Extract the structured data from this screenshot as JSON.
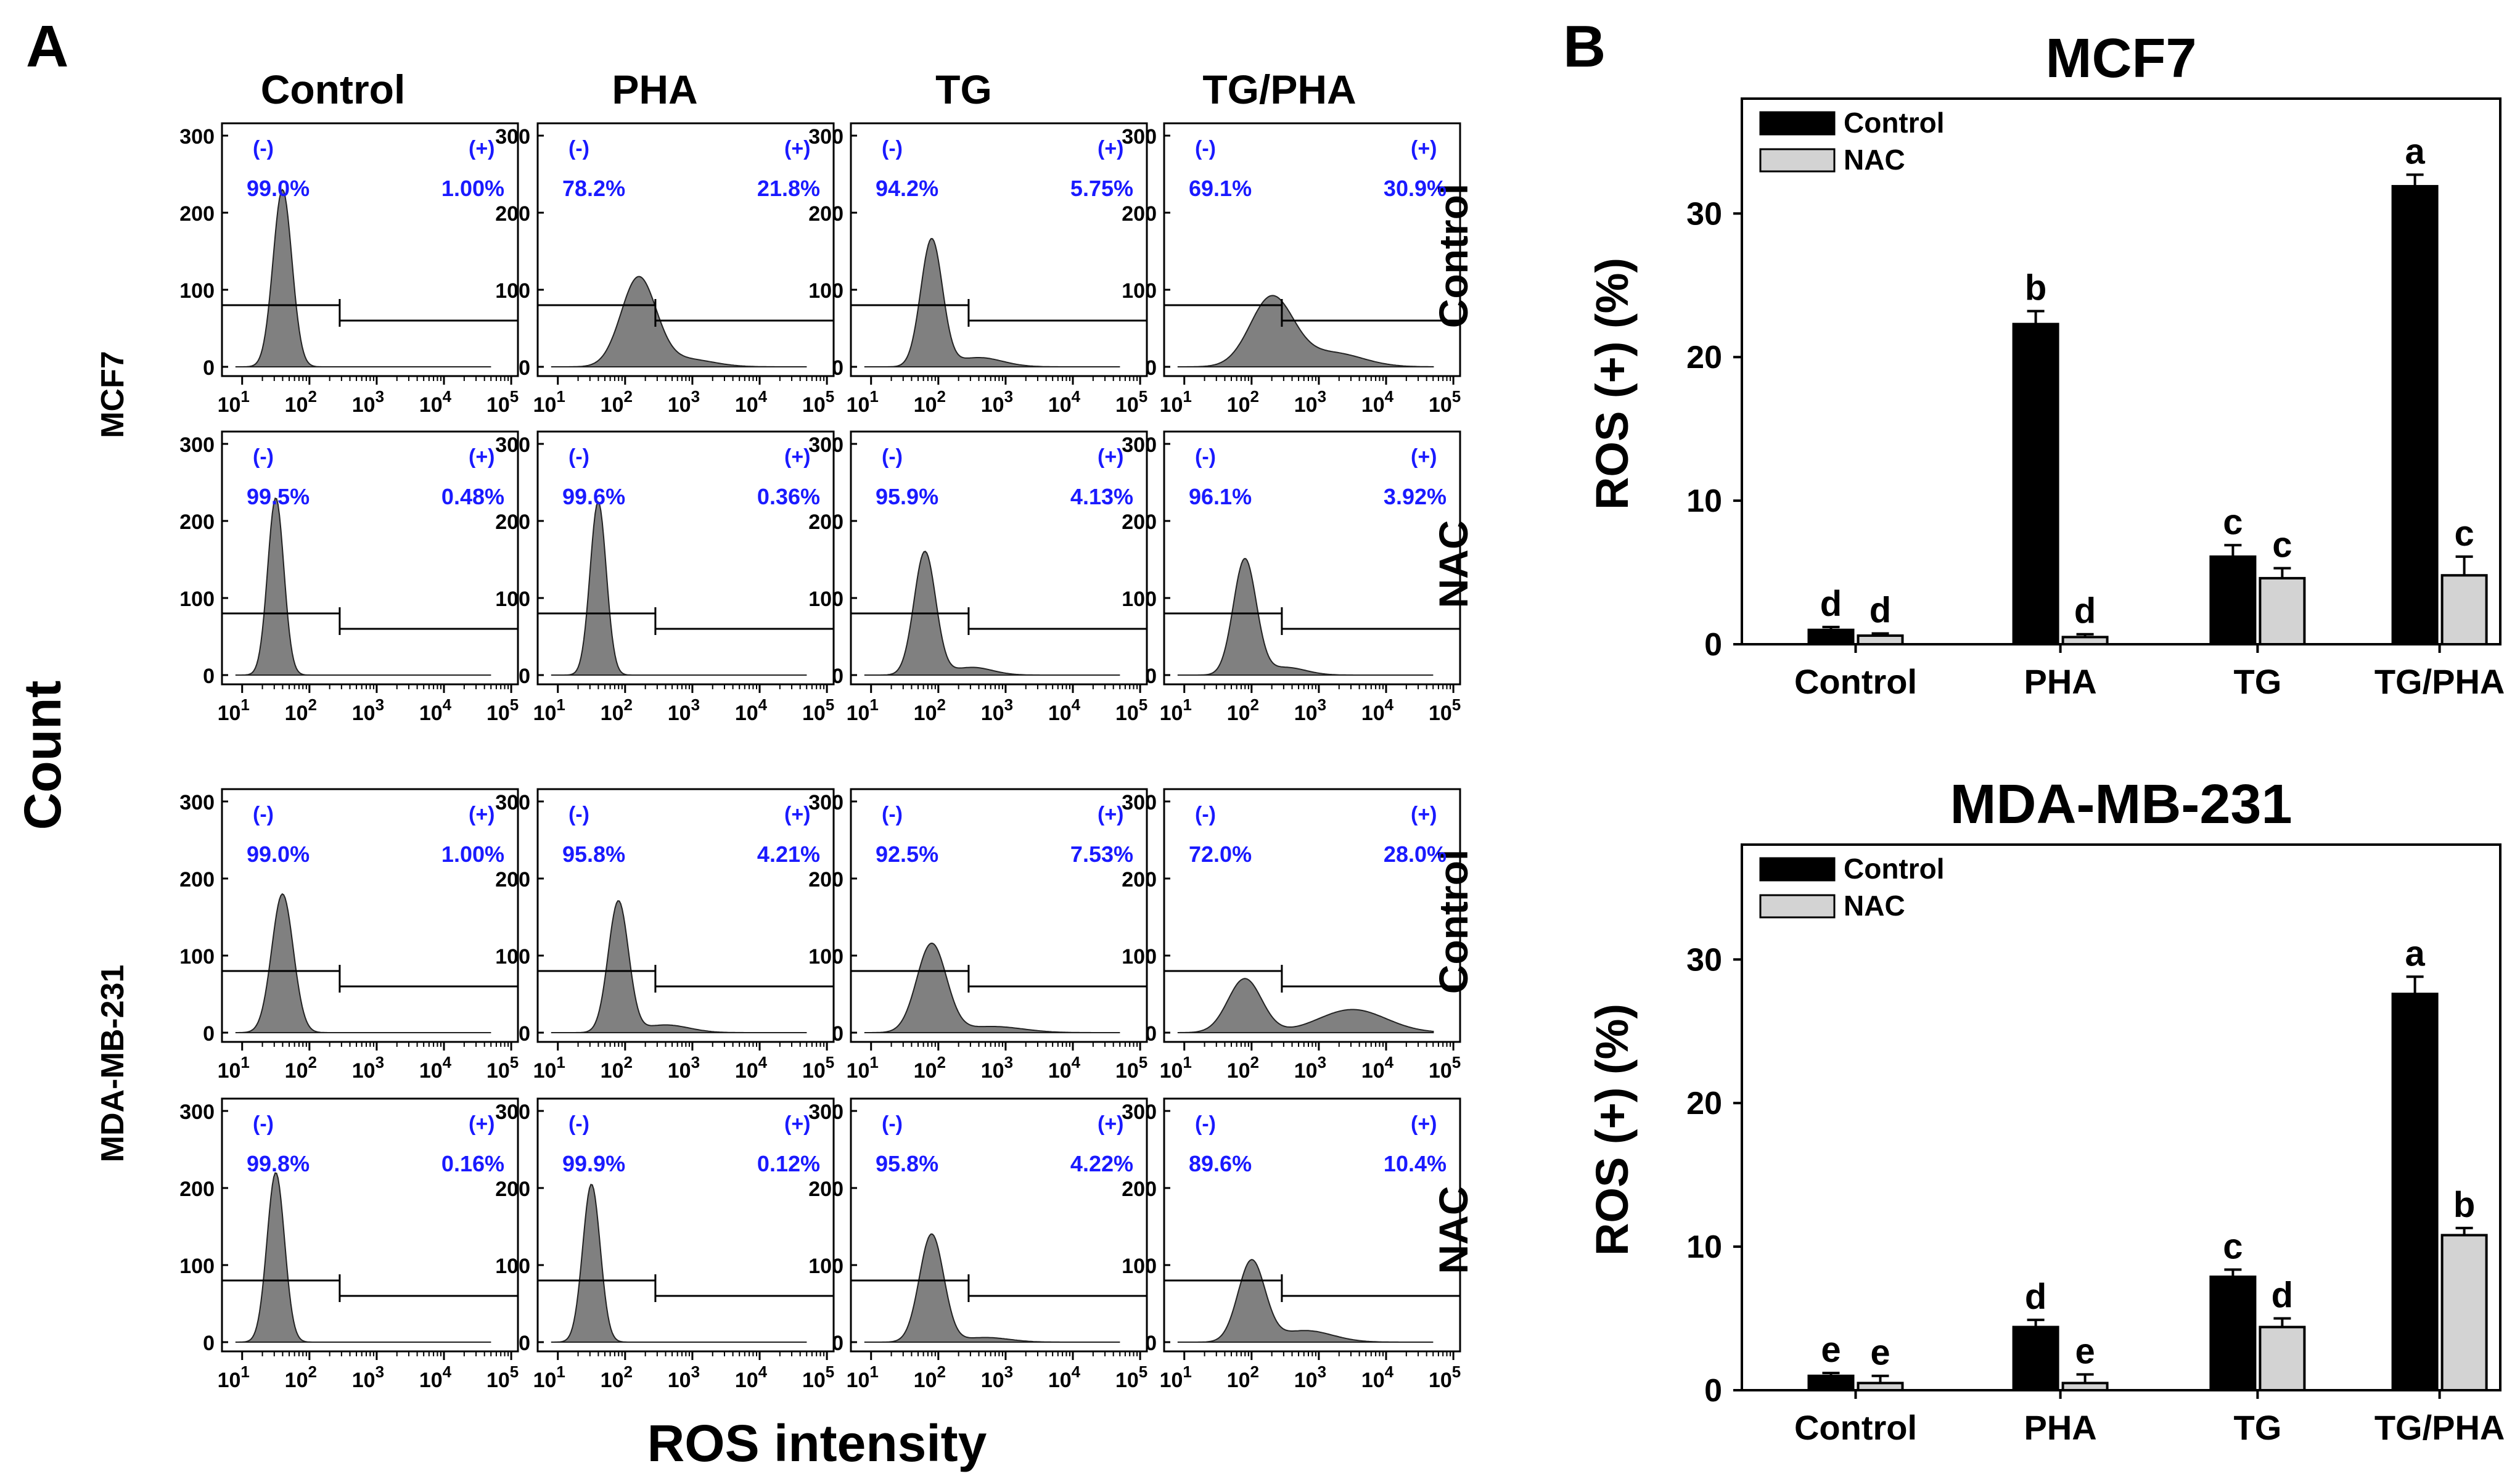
{
  "panel_labels": {
    "a": "A",
    "b": "B"
  },
  "panel_a": {
    "column_headers": [
      "Control",
      "PHA",
      "TG",
      "TG/PHA"
    ],
    "cell_lines": [
      "MCF7",
      "MDA-MB-231"
    ],
    "row_labels": [
      "Control",
      "NAC",
      "Control",
      "NAC"
    ],
    "y_axis_title": "Count",
    "x_axis_title": "ROS intensity",
    "gate_neg": "(-)",
    "gate_pos": "(+)",
    "y_ticks": [
      "0",
      "100",
      "200",
      "300"
    ],
    "x_ticks": [
      {
        "b": "10",
        "e": "1"
      },
      {
        "b": "10",
        "e": "2"
      },
      {
        "b": "10",
        "e": "3"
      },
      {
        "b": "10",
        "e": "4"
      },
      {
        "b": "10",
        "e": "5"
      }
    ],
    "histograms": [
      [
        {
          "neg": "99.0%",
          "pos": "1.00%",
          "peak_log": 1.6,
          "peak_count": 230,
          "width": 0.14,
          "shoulder": null
        },
        {
          "neg": "78.2%",
          "pos": "21.8%",
          "peak_log": 2.2,
          "peak_count": 115,
          "width": 0.26,
          "shoulder": {
            "log": 2.9,
            "count": 10,
            "width": 0.4
          }
        },
        {
          "neg": "94.2%",
          "pos": "5.75%",
          "peak_log": 1.9,
          "peak_count": 165,
          "width": 0.16,
          "shoulder": {
            "log": 2.6,
            "count": 12,
            "width": 0.35
          }
        },
        {
          "neg": "69.1%",
          "pos": "30.9%",
          "peak_log": 2.3,
          "peak_count": 90,
          "width": 0.32,
          "shoulder": {
            "log": 3.2,
            "count": 18,
            "width": 0.45
          }
        }
      ],
      [
        {
          "neg": "99.5%",
          "pos": "0.48%",
          "peak_log": 1.5,
          "peak_count": 230,
          "width": 0.12,
          "shoulder": null
        },
        {
          "neg": "99.6%",
          "pos": "0.36%",
          "peak_log": 1.6,
          "peak_count": 225,
          "width": 0.12,
          "shoulder": null
        },
        {
          "neg": "95.9%",
          "pos": "4.13%",
          "peak_log": 1.8,
          "peak_count": 160,
          "width": 0.16,
          "shoulder": {
            "log": 2.5,
            "count": 10,
            "width": 0.3
          }
        },
        {
          "neg": "96.1%",
          "pos": "3.92%",
          "peak_log": 1.9,
          "peak_count": 150,
          "width": 0.17,
          "shoulder": {
            "log": 2.5,
            "count": 10,
            "width": 0.3
          }
        }
      ],
      [
        {
          "neg": "99.0%",
          "pos": "1.00%",
          "peak_log": 1.6,
          "peak_count": 180,
          "width": 0.16,
          "shoulder": null
        },
        {
          "neg": "95.8%",
          "pos": "4.21%",
          "peak_log": 1.9,
          "peak_count": 170,
          "width": 0.15,
          "shoulder": {
            "log": 2.6,
            "count": 10,
            "width": 0.35
          }
        },
        {
          "neg": "92.5%",
          "pos": "7.53%",
          "peak_log": 1.9,
          "peak_count": 115,
          "width": 0.22,
          "shoulder": {
            "log": 2.8,
            "count": 8,
            "width": 0.45
          }
        },
        {
          "neg": "72.0%",
          "pos": "28.0%",
          "peak_log": 1.9,
          "peak_count": 70,
          "width": 0.25,
          "shoulder": {
            "log": 3.5,
            "count": 30,
            "width": 0.5
          }
        }
      ],
      [
        {
          "neg": "99.8%",
          "pos": "0.16%",
          "peak_log": 1.5,
          "peak_count": 220,
          "width": 0.13,
          "shoulder": null
        },
        {
          "neg": "99.9%",
          "pos": "0.12%",
          "peak_log": 1.5,
          "peak_count": 205,
          "width": 0.13,
          "shoulder": null
        },
        {
          "neg": "95.8%",
          "pos": "4.22%",
          "peak_log": 1.9,
          "peak_count": 140,
          "width": 0.18,
          "shoulder": {
            "log": 2.7,
            "count": 6,
            "width": 0.35
          }
        },
        {
          "neg": "89.6%",
          "pos": "10.4%",
          "peak_log": 2.0,
          "peak_count": 105,
          "width": 0.2,
          "shoulder": {
            "log": 2.8,
            "count": 15,
            "width": 0.4
          }
        }
      ]
    ]
  },
  "chart_data": [
    {
      "type": "bar",
      "title": "MCF7",
      "ylabel": "ROS (+) (%)",
      "xlabel": "",
      "ylim": [
        0,
        38
      ],
      "yticks": [
        0,
        10,
        20,
        30
      ],
      "categories": [
        "Control",
        "PHA",
        "TG",
        "TG/PHA"
      ],
      "series": [
        {
          "name": "Control",
          "color": "#000000",
          "values": [
            1.0,
            22.3,
            6.1,
            31.9
          ],
          "errors": [
            0.2,
            0.9,
            0.8,
            0.8
          ],
          "letters": [
            "d",
            "b",
            "c",
            "a"
          ]
        },
        {
          "name": "NAC",
          "color": "#d3d3d3",
          "values": [
            0.6,
            0.5,
            4.6,
            4.8
          ],
          "errors": [
            0.15,
            0.2,
            0.7,
            1.3
          ],
          "letters": [
            "d",
            "d",
            "c",
            "c"
          ]
        }
      ],
      "legend": "top-left"
    },
    {
      "type": "bar",
      "title": "MDA-MB-231",
      "ylabel": "ROS (+) (%)",
      "xlabel": "",
      "ylim": [
        0,
        38
      ],
      "yticks": [
        0,
        10,
        20,
        30
      ],
      "categories": [
        "Control",
        "PHA",
        "TG",
        "TG/PHA"
      ],
      "series": [
        {
          "name": "Control",
          "color": "#000000",
          "values": [
            1.0,
            4.4,
            7.9,
            27.6
          ],
          "errors": [
            0.2,
            0.5,
            0.5,
            1.2
          ],
          "letters": [
            "e",
            "d",
            "c",
            "a"
          ]
        },
        {
          "name": "NAC",
          "color": "#d3d3d3",
          "values": [
            0.5,
            0.5,
            4.4,
            10.8
          ],
          "errors": [
            0.5,
            0.6,
            0.6,
            0.5
          ],
          "letters": [
            "e",
            "e",
            "d",
            "b"
          ]
        }
      ],
      "legend": "top-left"
    }
  ]
}
